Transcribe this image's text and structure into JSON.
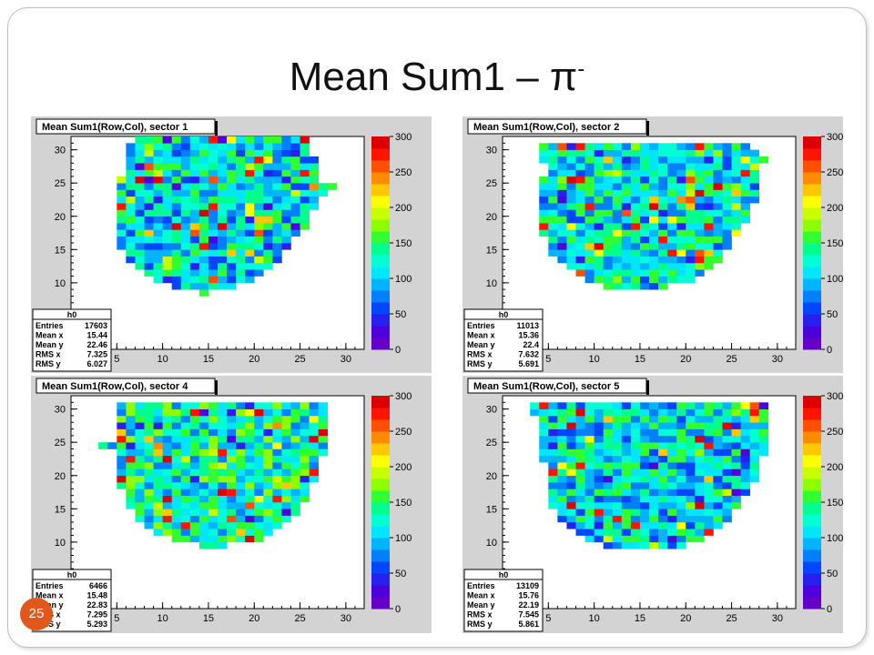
{
  "slide": {
    "title_main": "Mean Sum1 – π",
    "title_sup": "-",
    "page_number": "25"
  },
  "colors": {
    "palette": [
      "#6400c8",
      "#4b00dc",
      "#2820f0",
      "#0046ff",
      "#0080ff",
      "#00b4ff",
      "#00e6ff",
      "#00ffd2",
      "#00ff8c",
      "#32ff32",
      "#8cff00",
      "#c8ff00",
      "#ffff00",
      "#ffc800",
      "#ff8c00",
      "#ff5000",
      "#ff1400",
      "#dc0000"
    ],
    "frame_bg": "#d3d3d3"
  },
  "chart_data": [
    {
      "type": "heatmap",
      "title": "Mean Sum1(Row,Col), sector 1",
      "x_ticks": [
        5,
        10,
        15,
        20,
        25,
        30
      ],
      "y_ticks": [
        10,
        15,
        20,
        25,
        30
      ],
      "xlim": [
        0,
        32
      ],
      "ylim": [
        0,
        32
      ],
      "z_ticks": [
        0,
        50,
        100,
        150,
        200,
        250,
        300
      ],
      "zlim": [
        0,
        300
      ],
      "stats": {
        "name": "h0",
        "rows": [
          [
            "Entries",
            "17603"
          ],
          [
            "Mean x",
            "15.44"
          ],
          [
            "Mean y",
            "22.46"
          ],
          [
            "RMS x",
            "7.325"
          ],
          [
            "RMS y",
            "6.027"
          ]
        ]
      },
      "region": {
        "top_row": 32,
        "bottom_row": 9,
        "top_left": 8,
        "top_right": 26,
        "bottom_left": 15,
        "bottom_right": 15,
        "widen": [
          [
            9,
            15,
            15
          ],
          [
            10,
            12,
            18
          ],
          [
            11,
            10,
            20
          ],
          [
            12,
            9,
            21
          ],
          [
            13,
            8,
            22
          ],
          [
            14,
            7,
            23
          ],
          [
            15,
            7,
            23
          ],
          [
            16,
            6,
            24
          ],
          [
            17,
            6,
            24
          ],
          [
            18,
            6,
            25
          ],
          [
            19,
            6,
            26
          ],
          [
            20,
            6,
            26
          ],
          [
            21,
            6,
            26
          ],
          [
            22,
            6,
            27
          ],
          [
            23,
            6,
            27
          ],
          [
            24,
            6,
            28
          ],
          [
            25,
            6,
            29
          ],
          [
            26,
            6,
            27
          ],
          [
            27,
            7,
            27
          ],
          [
            28,
            7,
            27
          ],
          [
            29,
            7,
            27
          ],
          [
            30,
            7,
            26
          ],
          [
            31,
            7,
            26
          ],
          [
            32,
            8,
            26
          ]
        ]
      },
      "z_mean": 110,
      "seed": 11
    },
    {
      "type": "heatmap",
      "title": "Mean Sum1(Row,Col), sector 2",
      "x_ticks": [
        5,
        10,
        15,
        20,
        25,
        30
      ],
      "y_ticks": [
        10,
        15,
        20,
        25,
        30
      ],
      "xlim": [
        0,
        32
      ],
      "ylim": [
        0,
        32
      ],
      "z_ticks": [
        0,
        50,
        100,
        150,
        200,
        250,
        300
      ],
      "zlim": [
        0,
        300
      ],
      "stats": {
        "name": "h0",
        "rows": [
          [
            "Entries",
            "11013"
          ],
          [
            "Mean x",
            "15.36"
          ],
          [
            "Mean y",
            "22.4"
          ],
          [
            "RMS x",
            "7.632"
          ],
          [
            "RMS y",
            "5.691"
          ]
        ]
      },
      "region": {
        "widen": [
          [
            10,
            12,
            18
          ],
          [
            11,
            10,
            21
          ],
          [
            12,
            9,
            22
          ],
          [
            13,
            8,
            23
          ],
          [
            14,
            7,
            24
          ],
          [
            15,
            6,
            24
          ],
          [
            16,
            6,
            25
          ],
          [
            17,
            6,
            25
          ],
          [
            18,
            5,
            26
          ],
          [
            19,
            5,
            26
          ],
          [
            20,
            5,
            27
          ],
          [
            21,
            5,
            27
          ],
          [
            22,
            5,
            27
          ],
          [
            23,
            5,
            28
          ],
          [
            24,
            5,
            28
          ],
          [
            25,
            5,
            28
          ],
          [
            26,
            5,
            28
          ],
          [
            27,
            6,
            28
          ],
          [
            28,
            6,
            28
          ],
          [
            29,
            5,
            29
          ],
          [
            30,
            5,
            28
          ],
          [
            31,
            5,
            27
          ]
        ]
      },
      "z_mean": 115,
      "seed": 23
    },
    {
      "type": "heatmap",
      "title": "Mean Sum1(Row,Col), sector 4",
      "x_ticks": [
        5,
        10,
        15,
        20,
        25,
        30
      ],
      "y_ticks": [
        10,
        15,
        20,
        25,
        30
      ],
      "xlim": [
        0,
        32
      ],
      "ylim": [
        0,
        32
      ],
      "z_ticks": [
        0,
        50,
        100,
        150,
        200,
        250,
        300
      ],
      "zlim": [
        0,
        300
      ],
      "stats": {
        "name": "h0",
        "rows": [
          [
            "Entries",
            "6466"
          ],
          [
            "Mean x",
            "15.48"
          ],
          [
            "Mean y",
            "22.83"
          ],
          [
            "RMS x",
            "7.295"
          ],
          [
            "RMS y",
            "5.293"
          ]
        ]
      },
      "region": {
        "widen": [
          [
            10,
            15,
            17
          ],
          [
            11,
            12,
            21
          ],
          [
            12,
            10,
            22
          ],
          [
            13,
            9,
            23
          ],
          [
            14,
            8,
            24
          ],
          [
            15,
            8,
            25
          ],
          [
            16,
            7,
            25
          ],
          [
            17,
            7,
            26
          ],
          [
            18,
            7,
            26
          ],
          [
            19,
            6,
            26
          ],
          [
            20,
            6,
            27
          ],
          [
            21,
            6,
            27
          ],
          [
            22,
            6,
            27
          ],
          [
            23,
            6,
            27
          ],
          [
            24,
            6,
            28
          ],
          [
            25,
            4,
            28
          ],
          [
            26,
            6,
            28
          ],
          [
            27,
            6,
            28
          ],
          [
            28,
            6,
            28
          ],
          [
            29,
            6,
            28
          ],
          [
            30,
            6,
            28
          ],
          [
            31,
            6,
            28
          ]
        ]
      },
      "z_mean": 125,
      "seed": 37
    },
    {
      "type": "heatmap",
      "title": "Mean Sum1(Row,Col), sector 5",
      "x_ticks": [
        5,
        10,
        15,
        20,
        25,
        30
      ],
      "y_ticks": [
        10,
        15,
        20,
        25,
        30
      ],
      "xlim": [
        0,
        32
      ],
      "ylim": [
        0,
        32
      ],
      "z_ticks": [
        0,
        50,
        100,
        150,
        200,
        250,
        300
      ],
      "zlim": [
        0,
        300
      ],
      "stats": {
        "name": "h0",
        "rows": [
          [
            "Entries",
            "13109"
          ],
          [
            "Mean x",
            "15.76"
          ],
          [
            "Mean y",
            "22.19"
          ],
          [
            "RMS x",
            "7.545"
          ],
          [
            "RMS y",
            "5.861"
          ]
        ]
      },
      "region": {
        "widen": [
          [
            10,
            12,
            20
          ],
          [
            11,
            10,
            22
          ],
          [
            12,
            9,
            23
          ],
          [
            13,
            8,
            24
          ],
          [
            14,
            7,
            25
          ],
          [
            15,
            7,
            25
          ],
          [
            16,
            6,
            26
          ],
          [
            17,
            6,
            26
          ],
          [
            18,
            6,
            27
          ],
          [
            19,
            6,
            27
          ],
          [
            20,
            6,
            28
          ],
          [
            21,
            6,
            28
          ],
          [
            22,
            6,
            28
          ],
          [
            23,
            5,
            28
          ],
          [
            24,
            5,
            29
          ],
          [
            25,
            5,
            29
          ],
          [
            26,
            5,
            29
          ],
          [
            27,
            5,
            29
          ],
          [
            28,
            5,
            29
          ],
          [
            29,
            5,
            29
          ],
          [
            30,
            4,
            29
          ],
          [
            31,
            4,
            29
          ]
        ]
      },
      "z_mean": 112,
      "seed": 53
    }
  ]
}
